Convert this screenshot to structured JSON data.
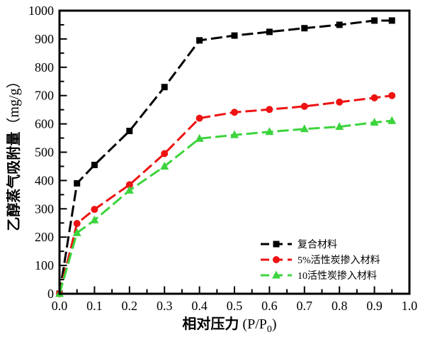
{
  "chart_data": {
    "type": "line",
    "title": "",
    "xlabel": {
      "cn": "相对压力",
      "pre": " (P/P",
      "sub": "0",
      "post": ")"
    },
    "ylabel": {
      "cn": "乙醇蒸气吸附量",
      "unit": "（mg/g）"
    },
    "xlim": [
      0,
      1
    ],
    "ylim": [
      0,
      1000
    ],
    "x_major_ticks": [
      0,
      0.1,
      0.2,
      0.3,
      0.4,
      0.5,
      0.6,
      0.7,
      0.8,
      0.9,
      1.0
    ],
    "x_tick_labels": [
      "0.0",
      "0.1",
      "0.2",
      "0.3",
      "0.4",
      "0.5",
      "0.6",
      "0.7",
      "0.8",
      "0.9",
      "1.0"
    ],
    "x_minor_step": 0.05,
    "y_major_ticks": [
      0,
      100,
      200,
      300,
      400,
      500,
      600,
      700,
      800,
      900,
      1000
    ],
    "y_tick_labels": [
      "0",
      "100",
      "200",
      "300",
      "400",
      "500",
      "600",
      "700",
      "800",
      "900",
      "1000"
    ],
    "y_minor_step": 50,
    "grid": false,
    "line_style": "dashed",
    "legend_position": "lower-right",
    "axis_color": "#000000",
    "x": [
      0,
      0.05,
      0.1,
      0.2,
      0.3,
      0.4,
      0.5,
      0.6,
      0.7,
      0.8,
      0.9,
      0.95
    ],
    "series": [
      {
        "name": "复合材料",
        "color": "#000000",
        "marker": "square",
        "values": [
          0,
          390,
          455,
          575,
          730,
          895,
          912,
          925,
          938,
          950,
          965,
          965
        ]
      },
      {
        "name": "5%活性炭掺入材料",
        "color": "#ee1212",
        "marker": "circle",
        "values": [
          0,
          248,
          298,
          385,
          495,
          620,
          641,
          651,
          662,
          677,
          692,
          700
        ]
      },
      {
        "name": "10活性炭掺入材料",
        "color": "#3cd43c",
        "marker": "triangle-up",
        "values": [
          0,
          215,
          260,
          365,
          450,
          548,
          561,
          572,
          582,
          590,
          605,
          611
        ]
      }
    ]
  }
}
